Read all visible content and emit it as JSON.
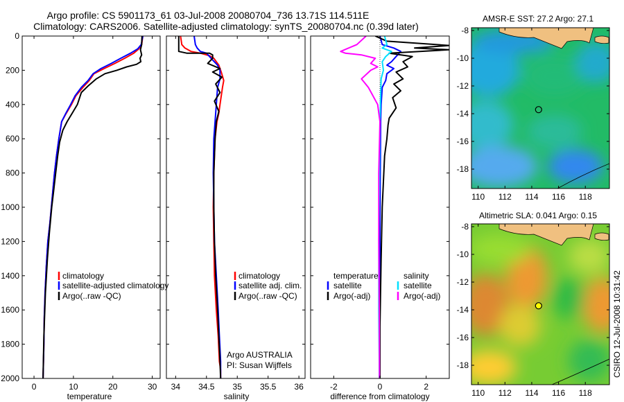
{
  "header": {
    "title_line1": "Argo profile: CS 5901173_61 03-Jul-2008 20080704_736 13.71S 114.511E",
    "title_line2": "Climatology: CARS2006. Satellite-adjusted climatology: synTS_20080704.nc (0.39d later)"
  },
  "credit": "CSIRO 12-Jul-2008 10:31:42",
  "colors": {
    "climatology": "#ff0000",
    "satellite": "#0000ff",
    "argo": "#000000",
    "salinity_satellite": "#00e0ff",
    "salinity_argo": "#ff00ff",
    "land": "#f0c080",
    "marker_sst": "#000000",
    "marker_sla": "#ffff00"
  },
  "chart_data": [
    {
      "id": "temperature",
      "type": "line",
      "xlabel": "temperature",
      "ylabel": "",
      "xlim": [
        -3,
        32
      ],
      "ylim": [
        2000,
        0
      ],
      "xticks": [
        "0",
        "10",
        "20",
        "30"
      ],
      "xtick_values": [
        0,
        10,
        20,
        30
      ],
      "yticks": [
        "0",
        "200",
        "400",
        "600",
        "800",
        "1000",
        "1200",
        "1400",
        "1600",
        "1800",
        "2000"
      ],
      "ytick_values": [
        0,
        200,
        400,
        600,
        800,
        1000,
        1200,
        1400,
        1600,
        1800,
        2000
      ],
      "legend": [
        "climatology",
        "satellite-adjusted climatology",
        "Argo(..raw -QC)"
      ],
      "series": [
        {
          "name": "climatology",
          "color_key": "climatology",
          "x": [
            27.6,
            27.3,
            26.6,
            25.3,
            23.0,
            20.5,
            17.8,
            15.2,
            14.0,
            12.4,
            10.6,
            9.5,
            8.2,
            7.0,
            6.3,
            5.7,
            5.2,
            4.8,
            4.4,
            4.0,
            3.5,
            3.1,
            2.8,
            2.6,
            2.5,
            2.4,
            2.3
          ],
          "y": [
            0,
            50,
            75,
            100,
            130,
            160,
            190,
            220,
            260,
            300,
            350,
            400,
            450,
            500,
            600,
            700,
            800,
            900,
            1000,
            1100,
            1200,
            1350,
            1500,
            1650,
            1800,
            1900,
            2000
          ]
        },
        {
          "name": "satellite-adjusted climatology",
          "color_key": "satellite",
          "x": [
            27.6,
            27.2,
            26.3,
            24.5,
            22.0,
            19.6,
            17.0,
            15.0,
            13.7,
            12.0,
            10.4,
            9.3,
            8.1,
            7.0,
            6.3,
            5.7,
            5.2,
            4.8,
            4.4,
            4.0,
            3.5,
            3.1,
            2.8,
            2.6,
            2.5,
            2.4,
            2.3
          ],
          "y": [
            0,
            50,
            75,
            100,
            130,
            160,
            190,
            220,
            260,
            300,
            350,
            400,
            450,
            500,
            600,
            700,
            800,
            900,
            1000,
            1100,
            1200,
            1350,
            1500,
            1650,
            1800,
            1900,
            2000
          ]
        },
        {
          "name": "Argo(..raw -QC)",
          "color_key": "argo",
          "x": [
            27.4,
            27.3,
            27.0,
            27.3,
            26.9,
            27.1,
            26.0,
            23.5,
            21.0,
            18.0,
            15.8,
            13.8,
            12.0,
            11.0,
            9.7,
            8.4,
            7.3,
            6.5,
            6.0,
            5.5,
            5.0,
            4.5,
            3.9,
            3.4,
            2.9,
            2.5,
            2.3
          ],
          "y": [
            0,
            50,
            80,
            110,
            130,
            150,
            165,
            180,
            200,
            220,
            250,
            290,
            330,
            400,
            450,
            500,
            550,
            620,
            700,
            800,
            900,
            1000,
            1150,
            1300,
            1500,
            1750,
            2000
          ]
        }
      ]
    },
    {
      "id": "salinity",
      "type": "line",
      "xlabel": "salinity",
      "ylabel": "",
      "xlim": [
        33.85,
        36.1
      ],
      "ylim": [
        2000,
        0
      ],
      "xticks": [
        "34",
        "34.5",
        "35",
        "35.5",
        "36"
      ],
      "xtick_values": [
        34,
        34.5,
        35,
        35.5,
        36
      ],
      "yticks": [],
      "ytick_values": [
        0,
        200,
        400,
        600,
        800,
        1000,
        1200,
        1400,
        1600,
        1800,
        2000
      ],
      "legend": [
        "climatology",
        "satellite adj. clim.",
        "Argo(..raw -QC)"
      ],
      "annotation_lines": [
        "Argo AUSTRALIA",
        "PI: Susan Wijffels"
      ],
      "series": [
        {
          "name": "climatology",
          "color_key": "climatology",
          "x": [
            34.08,
            34.1,
            34.15,
            34.25,
            34.4,
            34.55,
            34.62,
            34.7,
            34.74,
            34.78,
            34.76,
            34.72,
            34.7,
            34.67,
            34.64,
            34.62,
            34.61,
            34.62,
            34.63,
            34.66,
            34.69,
            34.71,
            34.73,
            34.73
          ],
          "y": [
            0,
            50,
            70,
            90,
            100,
            115,
            130,
            170,
            210,
            260,
            300,
            400,
            450,
            500,
            600,
            800,
            1000,
            1200,
            1400,
            1600,
            1750,
            1900,
            1950,
            2000
          ]
        },
        {
          "name": "satellite adj. clim.",
          "color_key": "satellite",
          "x": [
            34.3,
            34.32,
            34.35,
            34.4,
            34.5,
            34.55,
            34.6,
            34.68,
            34.72,
            34.72,
            34.68,
            34.66,
            34.64,
            34.62,
            34.61,
            34.62,
            34.63,
            34.66,
            34.69,
            34.71,
            34.73,
            34.73
          ],
          "y": [
            0,
            50,
            70,
            90,
            100,
            120,
            140,
            170,
            200,
            250,
            300,
            400,
            500,
            600,
            800,
            1000,
            1200,
            1400,
            1600,
            1750,
            1900,
            2000
          ]
        },
        {
          "name": "Argo(..raw -QC)",
          "color_key": "argo",
          "x": [
            34.05,
            34.05,
            34.05,
            34.18,
            34.55,
            34.6,
            34.6,
            34.52,
            34.72,
            34.6,
            34.75,
            34.65,
            34.72,
            34.63,
            34.7,
            34.66,
            34.64,
            34.62,
            34.62,
            34.63,
            34.65,
            34.68,
            34.7,
            34.72,
            34.73
          ],
          "y": [
            0,
            50,
            90,
            100,
            100,
            110,
            130,
            160,
            190,
            210,
            240,
            280,
            330,
            380,
            440,
            500,
            600,
            800,
            1000,
            1200,
            1400,
            1600,
            1750,
            1900,
            2000
          ]
        }
      ]
    },
    {
      "id": "difference",
      "type": "line",
      "xlabel": "difference from climatology",
      "ylabel": "",
      "xlim": [
        -3,
        3
      ],
      "ylim": [
        2000,
        0
      ],
      "xticks": [
        "-2",
        "0",
        "2"
      ],
      "xtick_values": [
        -2,
        0,
        2
      ],
      "yticks": [],
      "ytick_values": [
        0,
        200,
        400,
        600,
        800,
        1000,
        1200,
        1400,
        1600,
        1800,
        2000
      ],
      "legend_header": [
        "temperature",
        "salinity"
      ],
      "legend": [
        "satellite",
        "Argo(-adj)",
        "satellite",
        "Argo(-adj)"
      ],
      "series": [
        {
          "name": "temperature satellite",
          "color_key": "satellite",
          "x": [
            0.0,
            0.1,
            0.6,
            0.9,
            0.7,
            0.5,
            0.3,
            0.6,
            0.3,
            0.25,
            0.1,
            0.05,
            0.03,
            0.02,
            0.01,
            0.0,
            0.0,
            0.0
          ],
          "y": [
            0,
            50,
            70,
            90,
            120,
            150,
            170,
            190,
            220,
            260,
            300,
            400,
            500,
            700,
            900,
            1200,
            1600,
            2000
          ]
        },
        {
          "name": "temperature Argo(-adj)",
          "color_key": "argo",
          "x": [
            -0.2,
            0.3,
            3.0,
            1.5,
            3.0,
            0.4,
            1.4,
            1.0,
            1.2,
            0.7,
            1.0,
            0.6,
            0.9,
            0.55,
            0.7,
            0.4,
            0.35,
            0.3,
            0.2,
            0.15,
            0.1,
            0.05,
            0.0,
            0.0
          ],
          "y": [
            0,
            30,
            55,
            70,
            80,
            100,
            120,
            150,
            180,
            210,
            250,
            280,
            320,
            360,
            420,
            480,
            520,
            600,
            700,
            850,
            1000,
            1300,
            1700,
            2000
          ]
        },
        {
          "name": "salinity satellite",
          "color_key": "salinity_satellite",
          "x": [
            0.2,
            0.3,
            0.1,
            0.5,
            0.25,
            0.1,
            0.15,
            0.05,
            0.03,
            0.0,
            -0.02,
            -0.05,
            -0.05,
            -0.03,
            -0.03
          ],
          "y": [
            0,
            50,
            70,
            90,
            120,
            150,
            200,
            250,
            350,
            500,
            800,
            1200,
            1600,
            1900,
            2000
          ]
        },
        {
          "name": "salinity Argo(-adj)",
          "color_key": "salinity_argo",
          "x": [
            -0.6,
            -1.0,
            -1.7,
            -1.5,
            -0.8,
            -0.2,
            -0.4,
            -0.1,
            -0.4,
            -0.8,
            -0.5,
            -0.3,
            -0.1,
            0.0,
            -0.05,
            -0.05,
            -0.03,
            -0.02
          ],
          "y": [
            0,
            50,
            90,
            100,
            110,
            130,
            160,
            180,
            200,
            250,
            300,
            350,
            400,
            500,
            800,
            1200,
            1600,
            2000
          ]
        }
      ]
    },
    {
      "id": "sst_map",
      "type": "heatmap",
      "title": "AMSR-E SST: 27.2  Argo: 27.1",
      "xlim": [
        109.5,
        119.8
      ],
      "ylim": [
        -19.4,
        -7.8
      ],
      "xticks": [
        "110",
        "112",
        "114",
        "116",
        "118"
      ],
      "xtick_values": [
        110,
        112,
        114,
        116,
        118
      ],
      "yticks": [
        "-8",
        "-10",
        "-12",
        "-14",
        "-16",
        "-18"
      ],
      "ytick_values": [
        -8,
        -10,
        -12,
        -14,
        -16,
        -18
      ],
      "marker": {
        "lon": 114.511,
        "lat": -13.71
      }
    },
    {
      "id": "sla_map",
      "type": "heatmap",
      "title": "Altimetric SLA: 0.041  Argo: 0.15",
      "xlim": [
        109.5,
        119.8
      ],
      "ylim": [
        -19.4,
        -7.8
      ],
      "xticks": [
        "110",
        "112",
        "114",
        "116",
        "118"
      ],
      "xtick_values": [
        110,
        112,
        114,
        116,
        118
      ],
      "yticks": [
        "-8",
        "-10",
        "-12",
        "-14",
        "-16",
        "-18"
      ],
      "ytick_values": [
        -8,
        -10,
        -12,
        -14,
        -16,
        -18
      ],
      "marker": {
        "lon": 114.511,
        "lat": -13.71
      }
    }
  ]
}
